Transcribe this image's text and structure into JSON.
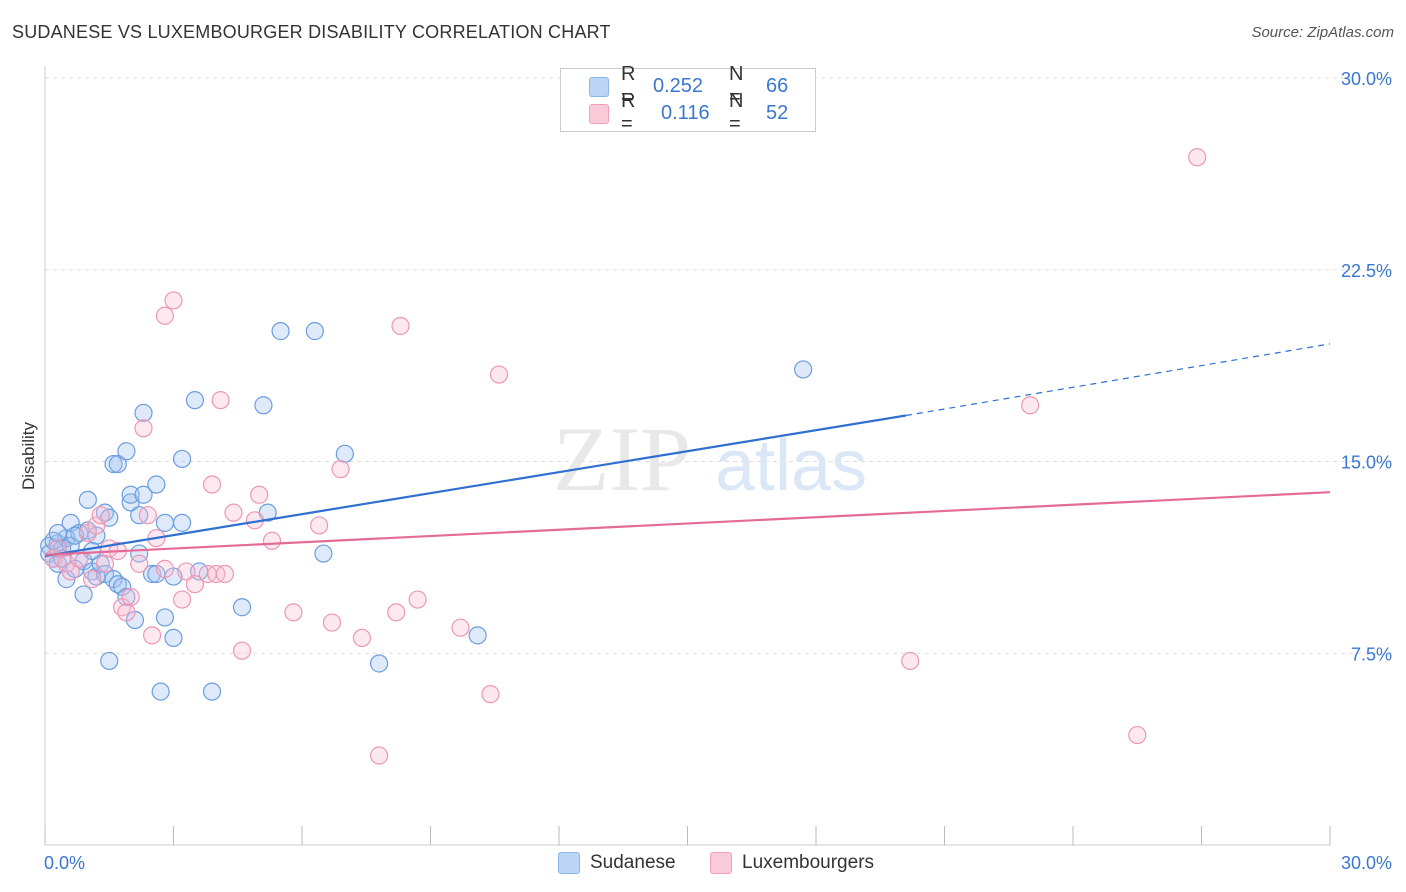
{
  "title": "SUDANESE VS LUXEMBOURGER DISABILITY CORRELATION CHART",
  "source": "Source: ZipAtlas.com",
  "watermark": {
    "zip": "ZIP",
    "atlas": "atlas"
  },
  "legend": {
    "rows": [
      {
        "r_label": "R =",
        "r_value": "0.252",
        "n_label": "N =",
        "n_value": "66",
        "color": "#8ab4ec",
        "fill": "#bcd4f5"
      },
      {
        "r_label": "R =",
        "r_value": "0.116",
        "n_label": "N =",
        "n_value": "52",
        "color": "#f0a0bc",
        "fill": "#f9cbd9"
      }
    ]
  },
  "colors": {
    "blue_stroke": "#6b9de0",
    "blue_fill": "rgba(160,196,240,0.35)",
    "blue_line": "#2f6fd0",
    "pink_stroke": "#ec97b5",
    "pink_fill": "rgba(248,190,210,0.35)",
    "pink_line": "#e46b96",
    "axis_text": "#3a77d1"
  },
  "chart_data": {
    "type": "scatter",
    "title": "SUDANESE VS LUXEMBOURGER DISABILITY CORRELATION CHART",
    "xlabel": "",
    "ylabel": "Disability",
    "xlim": [
      0,
      30
    ],
    "ylim": [
      0,
      30
    ],
    "x_tick_labels": [
      "0.0%",
      "30.0%"
    ],
    "y_ticks": [
      7.5,
      15.0,
      22.5,
      30.0
    ],
    "y_tick_labels": [
      "7.5%",
      "15.0%",
      "22.5%",
      "30.0%"
    ],
    "grid": true,
    "legend_position": "top-center",
    "series": [
      {
        "name": "Sudanese",
        "r": 0.252,
        "n": 66,
        "trend": {
          "x_start": 0.0,
          "y_start": 11.3,
          "x_solid_end": 20.1,
          "y_solid_end": 16.8,
          "x_end": 30.0,
          "y_end": 19.6
        },
        "points": [
          [
            0.1,
            11.7
          ],
          [
            0.1,
            11.4
          ],
          [
            0.2,
            11.2
          ],
          [
            0.3,
            11.8
          ],
          [
            0.3,
            11.0
          ],
          [
            0.4,
            11.6
          ],
          [
            0.5,
            12.0
          ],
          [
            0.5,
            10.4
          ],
          [
            0.6,
            12.6
          ],
          [
            0.6,
            11.7
          ],
          [
            0.7,
            10.8
          ],
          [
            0.8,
            12.2
          ],
          [
            0.9,
            9.8
          ],
          [
            0.9,
            11.1
          ],
          [
            1.0,
            12.3
          ],
          [
            1.0,
            13.5
          ],
          [
            1.1,
            10.7
          ],
          [
            1.2,
            10.5
          ],
          [
            1.2,
            12.1
          ],
          [
            1.3,
            11.0
          ],
          [
            1.4,
            10.6
          ],
          [
            1.4,
            13.0
          ],
          [
            1.5,
            12.8
          ],
          [
            1.5,
            7.2
          ],
          [
            1.6,
            14.9
          ],
          [
            1.6,
            10.4
          ],
          [
            1.7,
            14.9
          ],
          [
            1.7,
            10.2
          ],
          [
            1.8,
            10.1
          ],
          [
            1.9,
            15.4
          ],
          [
            1.9,
            9.7
          ],
          [
            2.0,
            13.4
          ],
          [
            2.0,
            13.7
          ],
          [
            2.1,
            8.8
          ],
          [
            2.2,
            11.4
          ],
          [
            2.2,
            12.9
          ],
          [
            2.3,
            13.7
          ],
          [
            2.3,
            16.9
          ],
          [
            2.5,
            10.6
          ],
          [
            2.6,
            14.1
          ],
          [
            2.6,
            10.6
          ],
          [
            2.7,
            6.0
          ],
          [
            2.8,
            12.6
          ],
          [
            2.8,
            8.9
          ],
          [
            3.0,
            10.5
          ],
          [
            3.0,
            8.1
          ],
          [
            3.2,
            15.1
          ],
          [
            3.2,
            12.6
          ],
          [
            3.5,
            17.4
          ],
          [
            3.6,
            10.7
          ],
          [
            3.9,
            6.0
          ],
          [
            4.6,
            9.3
          ],
          [
            5.1,
            17.2
          ],
          [
            5.2,
            13.0
          ],
          [
            5.5,
            20.1
          ],
          [
            6.3,
            20.1
          ],
          [
            6.5,
            11.4
          ],
          [
            7.0,
            15.3
          ],
          [
            7.8,
            7.1
          ],
          [
            10.1,
            8.2
          ],
          [
            17.7,
            18.6
          ],
          [
            0.2,
            11.9
          ],
          [
            0.4,
            11.2
          ],
          [
            0.7,
            12.1
          ],
          [
            1.1,
            11.5
          ],
          [
            0.3,
            12.2
          ]
        ]
      },
      {
        "name": "Luxembourgers",
        "r": 0.116,
        "n": 52,
        "trend": {
          "x_start": 0.0,
          "y_start": 11.35,
          "x_end": 30.0,
          "y_end": 13.8
        },
        "points": [
          [
            0.2,
            11.2
          ],
          [
            0.3,
            11.6
          ],
          [
            0.5,
            11.0
          ],
          [
            0.6,
            10.7
          ],
          [
            0.8,
            11.2
          ],
          [
            1.0,
            12.2
          ],
          [
            1.1,
            10.4
          ],
          [
            1.2,
            12.5
          ],
          [
            1.3,
            12.9
          ],
          [
            1.4,
            11.0
          ],
          [
            1.5,
            11.6
          ],
          [
            1.7,
            11.5
          ],
          [
            1.8,
            9.3
          ],
          [
            1.9,
            9.1
          ],
          [
            2.0,
            9.7
          ],
          [
            2.2,
            11.0
          ],
          [
            2.3,
            16.3
          ],
          [
            2.4,
            12.9
          ],
          [
            2.5,
            8.2
          ],
          [
            2.6,
            12.0
          ],
          [
            2.8,
            10.8
          ],
          [
            2.8,
            20.7
          ],
          [
            3.0,
            21.3
          ],
          [
            3.2,
            9.6
          ],
          [
            3.3,
            10.7
          ],
          [
            3.5,
            10.2
          ],
          [
            3.8,
            10.6
          ],
          [
            3.9,
            14.1
          ],
          [
            4.0,
            10.6
          ],
          [
            4.1,
            17.4
          ],
          [
            4.2,
            10.6
          ],
          [
            4.4,
            13.0
          ],
          [
            4.6,
            7.6
          ],
          [
            4.9,
            12.7
          ],
          [
            5.0,
            13.7
          ],
          [
            5.3,
            11.9
          ],
          [
            5.8,
            9.1
          ],
          [
            6.4,
            12.5
          ],
          [
            6.7,
            8.7
          ],
          [
            6.9,
            14.7
          ],
          [
            7.4,
            8.1
          ],
          [
            7.8,
            3.5
          ],
          [
            8.2,
            9.1
          ],
          [
            8.3,
            20.3
          ],
          [
            8.7,
            9.6
          ],
          [
            9.7,
            8.5
          ],
          [
            10.4,
            5.9
          ],
          [
            10.6,
            18.4
          ],
          [
            20.2,
            7.2
          ],
          [
            23.0,
            17.2
          ],
          [
            25.5,
            4.3
          ],
          [
            26.9,
            26.9
          ]
        ]
      }
    ]
  },
  "bottom_legend": {
    "items": [
      "Sudanese",
      "Luxembourgers"
    ]
  }
}
